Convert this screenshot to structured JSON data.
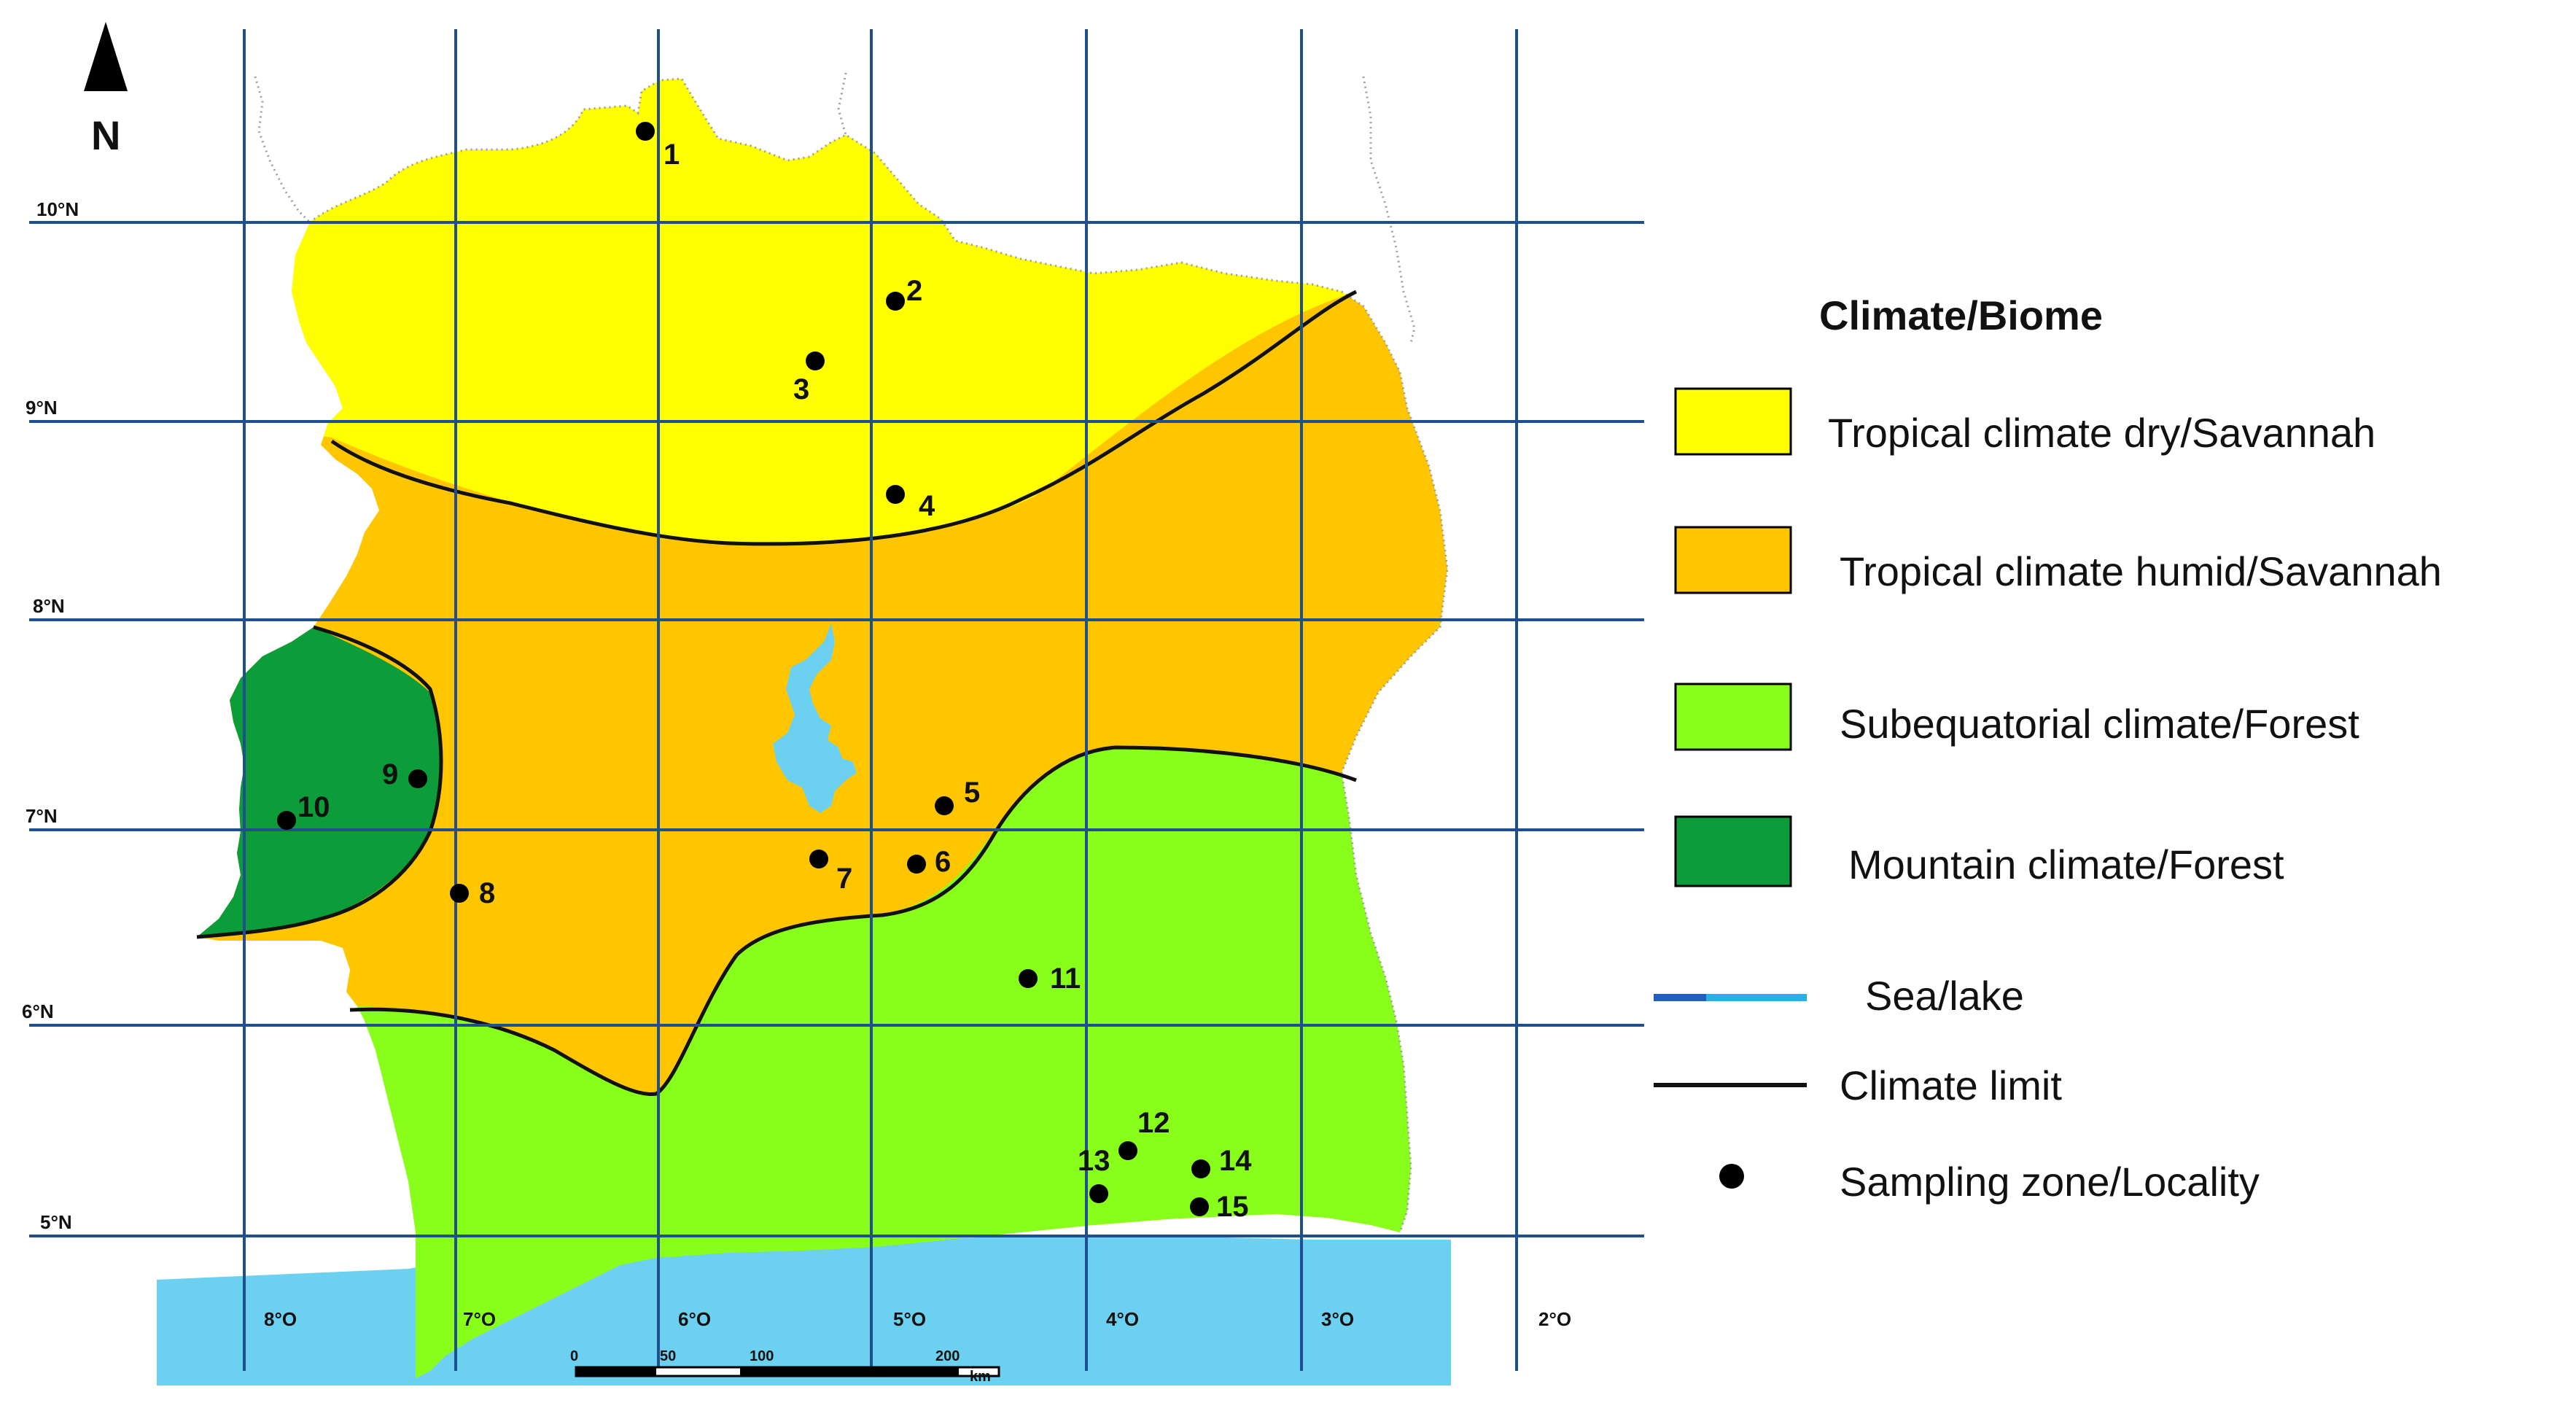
{
  "north_label": "N",
  "latitudes": [
    "10°N",
    "9°N",
    "8°N",
    "7°N",
    "6°N",
    "5°N"
  ],
  "longitudes": [
    "8°O",
    "7°O",
    "6°O",
    "5°O",
    "4°O",
    "3°O",
    "2°O"
  ],
  "colors": {
    "tropical_dry": "#ffff00",
    "tropical_humid": "#ffc600",
    "subequatorial": "#88ff1a",
    "mountain": "#0c9c3a",
    "sea": "#6cd0f0",
    "grid": "#1f4f8f",
    "border_dots": "#9aa0a6",
    "climate_limit": "#111111"
  },
  "legend": {
    "title": "Climate/Biome",
    "items": [
      {
        "label": "Tropical climate dry/Savannah",
        "symbol": "swatch",
        "color": "#ffff00"
      },
      {
        "label": "Tropical climate  humid/Savannah",
        "symbol": "swatch",
        "color": "#ffc600"
      },
      {
        "label": "Subequatorial climate/Forest",
        "symbol": "swatch",
        "color": "#88ff1a"
      },
      {
        "label": "Mountain climate/Forest",
        "symbol": "swatch",
        "color": "#0c9c3a"
      },
      {
        "label": "Sea/lake",
        "symbol": "line",
        "color": "#29aee6"
      },
      {
        "label": "Climate limit",
        "symbol": "line",
        "color": "#111111"
      },
      {
        "label": "Sampling zone/Locality",
        "symbol": "dot",
        "color": "#000000"
      }
    ]
  },
  "sampling_points": [
    "1",
    "2",
    "3",
    "4",
    "5",
    "6",
    "7",
    "8",
    "9",
    "10",
    "11",
    "12",
    "13",
    "14",
    "15"
  ],
  "scale_bar": {
    "ticks": [
      "0",
      "50",
      "100",
      "200"
    ],
    "unit": "km"
  }
}
